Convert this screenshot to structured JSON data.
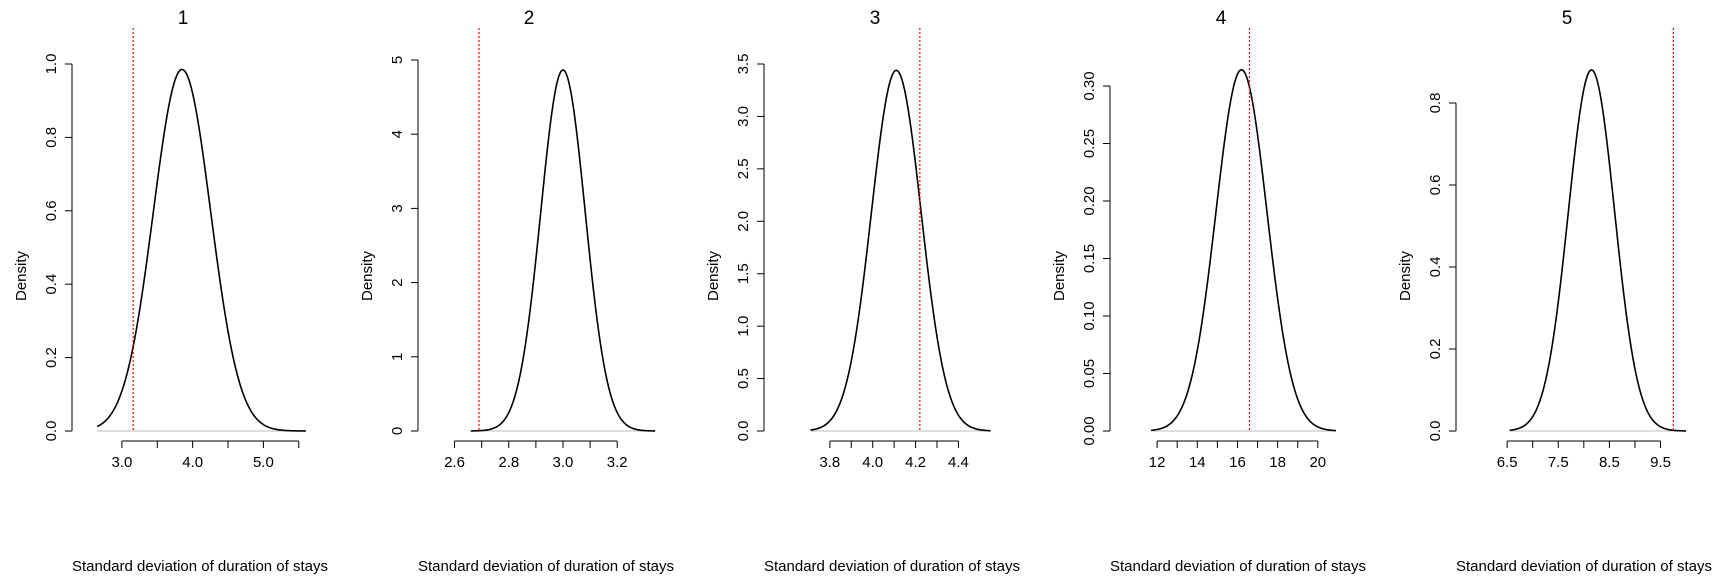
{
  "chart_data": [
    {
      "type": "line",
      "title": "1",
      "xlabel": "Standard deviation of duration of stays",
      "ylabel": "Density",
      "xlim": [
        2.62,
        5.8
      ],
      "ylim": [
        0,
        1.0
      ],
      "xticks": [
        3.0,
        3.5,
        4.0,
        4.5,
        5.0,
        5.5
      ],
      "xtick_labels": [
        "3.0",
        "",
        "4.0",
        "",
        "5.0",
        ""
      ],
      "yticks": [
        0.0,
        0.2,
        0.4,
        0.6,
        0.8,
        1.0
      ],
      "ytick_labels": [
        "0.0",
        "0.2",
        "0.4",
        "0.6",
        "0.8",
        "1.0"
      ],
      "series": [
        {
          "color": "#000000",
          "distribution": "normal",
          "mean": 3.85,
          "sd": 0.405,
          "x_range": [
            2.65,
            5.6
          ]
        }
      ],
      "reference_line": {
        "x": 3.16,
        "color": "#ff0000",
        "style": "dotted"
      },
      "baseline": {
        "y": 0,
        "color": "#bebebe"
      },
      "grid": false
    },
    {
      "type": "line",
      "title": "2",
      "xlabel": "Standard deviation of duration of stays",
      "ylabel": "Density",
      "xlim": [
        2.55,
        3.38
      ],
      "ylim": [
        0,
        5
      ],
      "xticks": [
        2.6,
        2.7,
        2.8,
        2.9,
        3.0,
        3.1,
        3.2
      ],
      "xtick_labels": [
        "2.6",
        "",
        "2.8",
        "",
        "3.0",
        "",
        "3.2"
      ],
      "yticks": [
        0,
        1,
        2,
        3,
        4,
        5
      ],
      "ytick_labels": [
        "0",
        "1",
        "2",
        "3",
        "4",
        "5"
      ],
      "series": [
        {
          "color": "#000000",
          "distribution": "normal",
          "mean": 3.0,
          "sd": 0.082,
          "x_range": [
            2.66,
            3.34
          ]
        }
      ],
      "reference_line": {
        "x": 2.69,
        "color": "#ff0000",
        "style": "dotted"
      },
      "baseline": {
        "y": 0,
        "color": "#bebebe"
      },
      "grid": false
    },
    {
      "type": "line",
      "title": "3",
      "xlabel": "Standard deviation of duration of stays",
      "ylabel": "Density",
      "xlim": [
        3.6,
        4.65
      ],
      "ylim": [
        0,
        3.5
      ],
      "xticks": [
        3.8,
        3.9,
        4.0,
        4.1,
        4.2,
        4.3,
        4.4
      ],
      "xtick_labels": [
        "3.8",
        "",
        "4.0",
        "",
        "4.2",
        "",
        "4.4"
      ],
      "yticks": [
        0.0,
        0.5,
        1.0,
        1.5,
        2.0,
        2.5,
        3.0,
        3.5
      ],
      "ytick_labels": [
        "0.0",
        "0.5",
        "1.0",
        "1.5",
        "2.0",
        "2.5",
        "3.0",
        "3.5"
      ],
      "series": [
        {
          "color": "#000000",
          "distribution": "normal",
          "mean": 4.11,
          "sd": 0.116,
          "x_range": [
            3.71,
            4.55
          ]
        }
      ],
      "reference_line": {
        "x": 4.22,
        "color": "#ff0000",
        "style": "dotted"
      },
      "baseline": {
        "y": 0,
        "color": "#bebebe"
      },
      "grid": false
    },
    {
      "type": "line",
      "title": "4",
      "xlabel": "Standard deviation of duration of stays",
      "ylabel": "Density",
      "xlim": [
        10.8,
        22.0
      ],
      "ylim": [
        0,
        0.32
      ],
      "xticks": [
        12,
        13,
        14,
        15,
        16,
        17,
        18,
        19,
        20
      ],
      "xtick_labels": [
        "12",
        "",
        "14",
        "",
        "16",
        "",
        "18",
        "",
        "20"
      ],
      "yticks": [
        0.0,
        0.05,
        0.1,
        0.15,
        0.2,
        0.25,
        0.3
      ],
      "ytick_labels": [
        "0.00",
        "0.05",
        "0.10",
        "0.15",
        "0.20",
        "0.25",
        "0.30"
      ],
      "series": [
        {
          "color": "#000000",
          "distribution": "normal",
          "mean": 16.2,
          "sd": 1.27,
          "x_range": [
            11.7,
            20.9
          ]
        }
      ],
      "reference_line": {
        "x": 16.6,
        "color": "#ff0000",
        "style": "dotted"
      },
      "baseline": {
        "y": 0,
        "color": "#bebebe"
      },
      "grid": false
    },
    {
      "type": "line",
      "title": "5",
      "xlabel": "Standard deviation of duration of stays",
      "ylabel": "Density",
      "xlim": [
        5.95,
        10.35
      ],
      "ylim": [
        0,
        0.88
      ],
      "xticks": [
        6.5,
        7.0,
        7.5,
        8.0,
        8.5,
        9.0,
        9.5
      ],
      "xtick_labels": [
        "6.5",
        "",
        "7.5",
        "",
        "8.5",
        "",
        "9.5"
      ],
      "yticks": [
        0.0,
        0.2,
        0.4,
        0.6,
        0.8
      ],
      "ytick_labels": [
        "0.0",
        "0.2",
        "0.4",
        "0.6",
        "0.8"
      ],
      "series": [
        {
          "color": "#000000",
          "distribution": "normal",
          "mean": 8.15,
          "sd": 0.453,
          "x_range": [
            6.55,
            10.0
          ]
        }
      ],
      "reference_line": {
        "x": 9.75,
        "color": "#ff0000",
        "style": "dotted"
      },
      "baseline": {
        "y": 0,
        "color": "#bebebe"
      },
      "grid": false
    }
  ]
}
